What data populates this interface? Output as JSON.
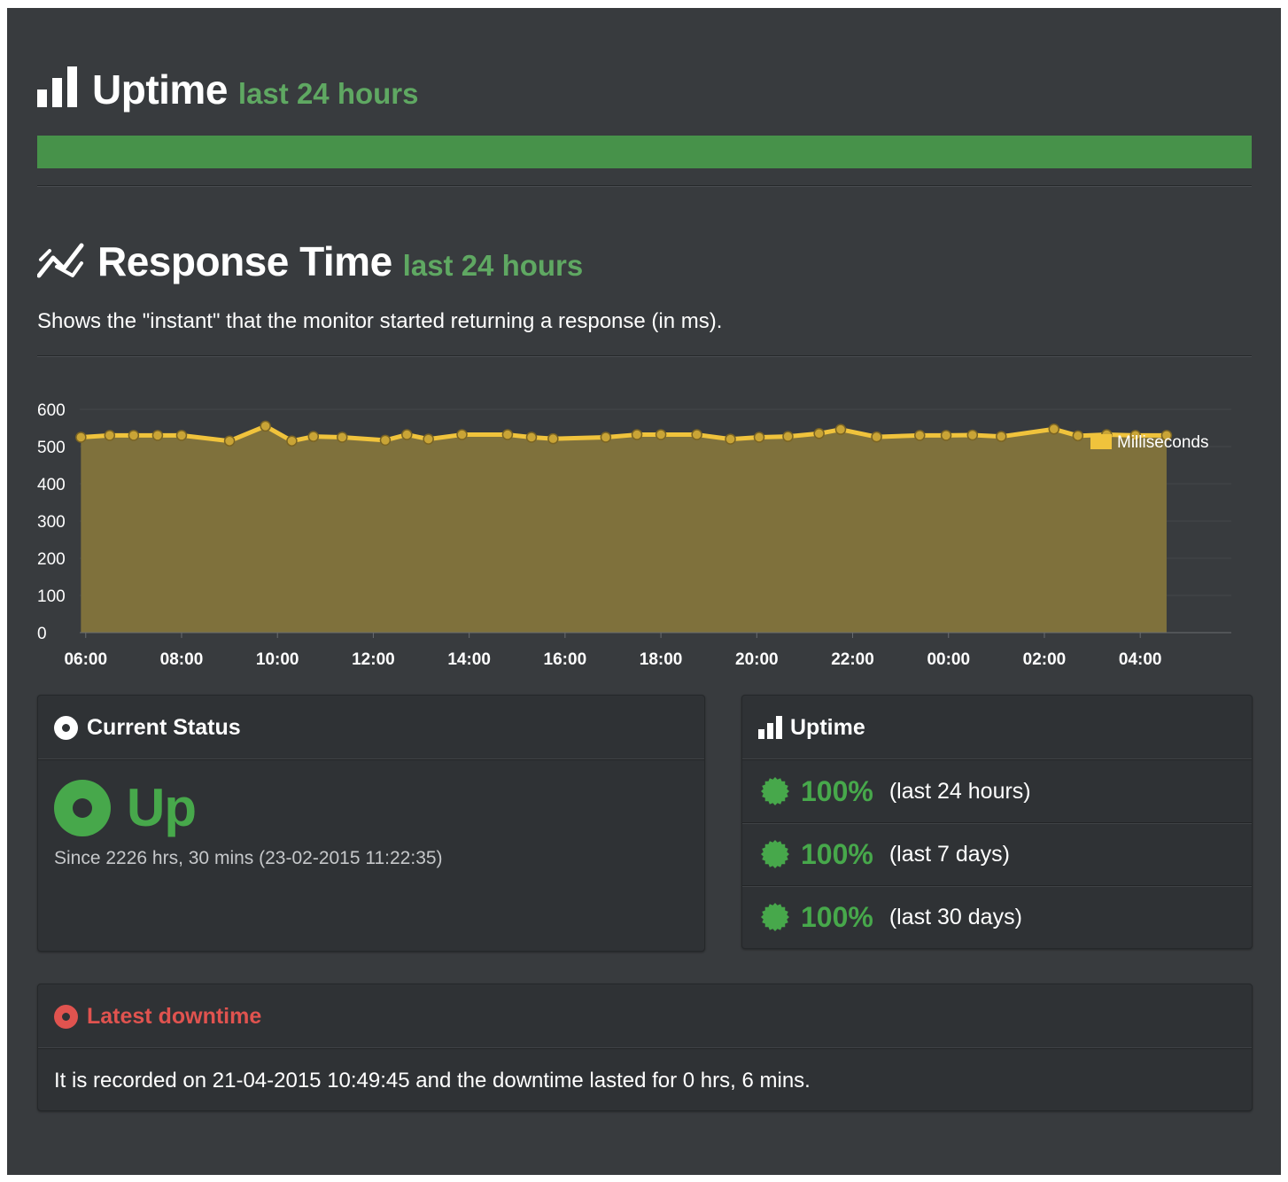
{
  "uptime_section": {
    "title": "Uptime",
    "subtitle": "last 24 hours",
    "bar_color": "#47924a",
    "bar_fill_fraction": 1.0
  },
  "response_section": {
    "title": "Response Time",
    "subtitle": "last 24 hours",
    "description": "Shows the \"instant\" that the monitor started returning a response (in ms)."
  },
  "chart_data": {
    "type": "area",
    "series": [
      {
        "name": "Milliseconds",
        "color": "#f0c33c",
        "fill": "#7f713c",
        "points": [
          [
            5.9,
            525
          ],
          [
            6.5,
            530
          ],
          [
            7.0,
            530
          ],
          [
            7.5,
            530
          ],
          [
            8.0,
            530
          ],
          [
            9.0,
            515
          ],
          [
            9.75,
            555
          ],
          [
            10.3,
            515
          ],
          [
            10.75,
            527
          ],
          [
            11.35,
            525
          ],
          [
            12.25,
            517
          ],
          [
            12.7,
            532
          ],
          [
            13.15,
            520
          ],
          [
            13.85,
            532
          ],
          [
            14.8,
            532
          ],
          [
            15.3,
            525
          ],
          [
            15.75,
            521
          ],
          [
            16.85,
            525
          ],
          [
            17.5,
            532
          ],
          [
            18.0,
            532
          ],
          [
            18.75,
            532
          ],
          [
            19.45,
            520
          ],
          [
            20.05,
            525
          ],
          [
            20.65,
            527
          ],
          [
            21.3,
            535
          ],
          [
            21.75,
            546
          ],
          [
            22.5,
            526
          ],
          [
            23.4,
            530
          ],
          [
            23.95,
            530
          ],
          [
            24.5,
            531
          ],
          [
            25.1,
            527
          ],
          [
            26.2,
            547
          ],
          [
            26.7,
            529
          ],
          [
            27.3,
            532
          ],
          [
            27.9,
            530
          ],
          [
            28.55,
            530
          ]
        ]
      }
    ],
    "x_tick_labels": [
      "06:00",
      "08:00",
      "10:00",
      "12:00",
      "14:00",
      "16:00",
      "18:00",
      "20:00",
      "22:00",
      "00:00",
      "02:00",
      "04:00"
    ],
    "x_ticks": [
      6,
      8,
      10,
      12,
      14,
      16,
      18,
      20,
      22,
      24,
      26,
      28
    ],
    "xlim": [
      5.875,
      29.9
    ],
    "y_ticks": [
      0,
      100,
      200,
      300,
      400,
      500,
      600
    ],
    "ylim": [
      0,
      600
    ],
    "legend": {
      "label": "Milliseconds",
      "position": "top-right"
    },
    "grid": true
  },
  "current_status": {
    "title": "Current Status",
    "state": "Up",
    "since": "Since 2226 hrs, 30 mins (23-02-2015 11:22:35)",
    "state_color": "#47a84b"
  },
  "uptime_panel": {
    "title": "Uptime",
    "rows": [
      {
        "percent": "100%",
        "period": "(last 24 hours)"
      },
      {
        "percent": "100%",
        "period": "(last 7 days)"
      },
      {
        "percent": "100%",
        "period": "(last 30 days)"
      }
    ]
  },
  "latest_downtime": {
    "title": "Latest downtime",
    "text": "It is recorded on 21-04-2015 10:49:45 and the downtime lasted for 0 hrs, 6 mins.",
    "color": "#e0534f"
  }
}
